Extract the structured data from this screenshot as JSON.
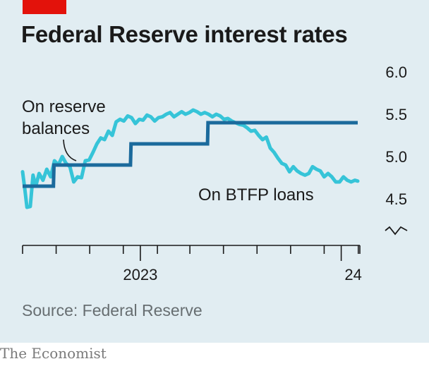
{
  "header": {
    "title": "Federal Reserve interest rates"
  },
  "footer": {
    "source": "Source: Federal Reserve",
    "brand": "The Economist"
  },
  "colors": {
    "background": "#e1edf2",
    "accent_red": "#e3120b",
    "reserve_balances": "#1b6a9c",
    "btfp_loans": "#36c4d8"
  },
  "chart_data": {
    "type": "line",
    "title": "Federal Reserve interest rates",
    "x_axis": {
      "tick_labels": [
        "2023",
        "24"
      ],
      "range": [
        "2022-06-01",
        "2024-01-31"
      ],
      "minor_ticks": "monthly"
    },
    "y_axis": {
      "ticks": [
        4.5,
        5.0,
        5.5,
        6.0
      ],
      "tick_labels": [
        "4.5",
        "5.0",
        "5.5",
        "6.0"
      ],
      "range": [
        4.2,
        6.0
      ],
      "axis_break": true,
      "position": "right"
    },
    "grid": false,
    "series": [
      {
        "name": "On reserve balances",
        "annotation_lines": [
          "On reserve",
          "balances"
        ],
        "style": "step",
        "points": [
          [
            "2022-06-01",
            4.65
          ],
          [
            "2022-07-27",
            4.65
          ],
          [
            "2022-07-28",
            4.9
          ],
          [
            "2022-12-14",
            4.9
          ],
          [
            "2022-12-15",
            5.15
          ],
          [
            "2023-05-03",
            5.15
          ],
          [
            "2023-05-04",
            5.4
          ],
          [
            "2024-01-31",
            5.4
          ]
        ]
      },
      {
        "name": "On BTFP loans",
        "annotation_lines": [
          "On BTFP loans"
        ],
        "style": "line",
        "points": [
          [
            "2022-06-01",
            4.82
          ],
          [
            "2022-06-05",
            4.62
          ],
          [
            "2022-06-09",
            4.4
          ],
          [
            "2022-06-15",
            4.41
          ],
          [
            "2022-06-20",
            4.78
          ],
          [
            "2022-06-25",
            4.65
          ],
          [
            "2022-07-01",
            4.8
          ],
          [
            "2022-07-08",
            4.72
          ],
          [
            "2022-07-15",
            4.85
          ],
          [
            "2022-07-22",
            4.76
          ],
          [
            "2022-07-29",
            4.95
          ],
          [
            "2022-08-05",
            4.9
          ],
          [
            "2022-08-12",
            5.0
          ],
          [
            "2022-08-19",
            4.92
          ],
          [
            "2022-08-26",
            4.88
          ],
          [
            "2022-09-02",
            4.7
          ],
          [
            "2022-09-09",
            4.76
          ],
          [
            "2022-09-16",
            4.75
          ],
          [
            "2022-09-23",
            4.95
          ],
          [
            "2022-09-30",
            4.96
          ],
          [
            "2022-10-07",
            5.05
          ],
          [
            "2022-10-14",
            5.15
          ],
          [
            "2022-10-21",
            5.22
          ],
          [
            "2022-10-28",
            5.2
          ],
          [
            "2022-11-04",
            5.3
          ],
          [
            "2022-11-11",
            5.25
          ],
          [
            "2022-11-18",
            5.41
          ],
          [
            "2022-11-25",
            5.44
          ],
          [
            "2022-12-02",
            5.42
          ],
          [
            "2022-12-09",
            5.48
          ],
          [
            "2022-12-16",
            5.46
          ],
          [
            "2022-12-23",
            5.39
          ],
          [
            "2022-12-30",
            5.44
          ],
          [
            "2023-01-06",
            5.43
          ],
          [
            "2023-01-13",
            5.49
          ],
          [
            "2023-01-20",
            5.47
          ],
          [
            "2023-01-27",
            5.42
          ],
          [
            "2023-02-03",
            5.46
          ],
          [
            "2023-02-10",
            5.47
          ],
          [
            "2023-02-17",
            5.5
          ],
          [
            "2023-02-24",
            5.52
          ],
          [
            "2023-03-03",
            5.47
          ],
          [
            "2023-03-10",
            5.5
          ],
          [
            "2023-03-17",
            5.53
          ],
          [
            "2023-03-24",
            5.5
          ],
          [
            "2023-03-31",
            5.52
          ],
          [
            "2023-04-07",
            5.55
          ],
          [
            "2023-04-14",
            5.53
          ],
          [
            "2023-04-21",
            5.5
          ],
          [
            "2023-04-28",
            5.52
          ],
          [
            "2023-05-05",
            5.5
          ],
          [
            "2023-05-12",
            5.47
          ],
          [
            "2023-05-19",
            5.5
          ],
          [
            "2023-05-26",
            5.48
          ],
          [
            "2023-06-02",
            5.44
          ],
          [
            "2023-06-09",
            5.45
          ],
          [
            "2023-06-16",
            5.42
          ],
          [
            "2023-06-23",
            5.4
          ],
          [
            "2023-06-30",
            5.38
          ],
          [
            "2023-07-07",
            5.37
          ],
          [
            "2023-07-14",
            5.34
          ],
          [
            "2023-07-21",
            5.3
          ],
          [
            "2023-07-28",
            5.31
          ],
          [
            "2023-08-04",
            5.25
          ],
          [
            "2023-08-11",
            5.2
          ],
          [
            "2023-08-18",
            5.23
          ],
          [
            "2023-08-25",
            5.1
          ],
          [
            "2023-09-01",
            5.05
          ],
          [
            "2023-09-08",
            4.98
          ],
          [
            "2023-09-15",
            4.92
          ],
          [
            "2023-09-22",
            4.9
          ],
          [
            "2023-09-29",
            4.82
          ],
          [
            "2023-10-06",
            4.88
          ],
          [
            "2023-10-13",
            4.83
          ],
          [
            "2023-10-20",
            4.8
          ],
          [
            "2023-10-27",
            4.78
          ],
          [
            "2023-11-03",
            4.8
          ],
          [
            "2023-11-10",
            4.88
          ],
          [
            "2023-11-17",
            4.85
          ],
          [
            "2023-11-24",
            4.83
          ],
          [
            "2023-12-01",
            4.76
          ],
          [
            "2023-12-08",
            4.8
          ],
          [
            "2023-12-15",
            4.76
          ],
          [
            "2023-12-22",
            4.7
          ],
          [
            "2023-12-29",
            4.7
          ],
          [
            "2024-01-05",
            4.76
          ],
          [
            "2024-01-12",
            4.72
          ],
          [
            "2024-01-19",
            4.7
          ],
          [
            "2024-01-26",
            4.72
          ],
          [
            "2024-01-31",
            4.71
          ]
        ]
      }
    ]
  }
}
